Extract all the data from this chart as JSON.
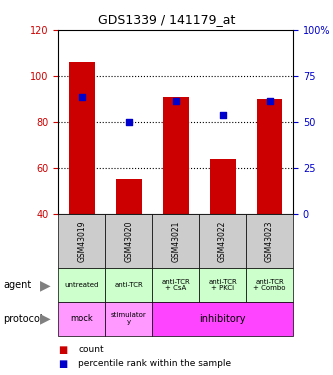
{
  "title": "GDS1339 / 141179_at",
  "categories": [
    "GSM43019",
    "GSM43020",
    "GSM43021",
    "GSM43022",
    "GSM43023"
  ],
  "bar_tops": [
    106,
    55,
    91,
    64,
    90
  ],
  "bar_bottom": 40,
  "blue_y_left": [
    91,
    80,
    89,
    83,
    89
  ],
  "ylim_left": [
    40,
    120
  ],
  "ylim_right": [
    0,
    100
  ],
  "yticks_left": [
    40,
    60,
    80,
    100,
    120
  ],
  "yticks_right": [
    0,
    25,
    50,
    75,
    100
  ],
  "bar_color": "#cc0000",
  "blue_color": "#0000cc",
  "agent_labels": [
    "untreated",
    "anti-TCR",
    "anti-TCR\n+ CsA",
    "anti-TCR\n+ PKCi",
    "anti-TCR\n+ Combo"
  ],
  "tick_label_color_left": "#cc0000",
  "tick_label_color_right": "#0000cc",
  "legend_count_color": "#cc0000",
  "legend_pct_color": "#0000cc",
  "agent_row_color": "#ccffcc",
  "protocol_row_mock_color": "#ff99ff",
  "protocol_row_stimulatory_color": "#ff99ff",
  "protocol_row_inhibitory_color": "#ff44ff",
  "gsm_bg_color": "#cccccc"
}
